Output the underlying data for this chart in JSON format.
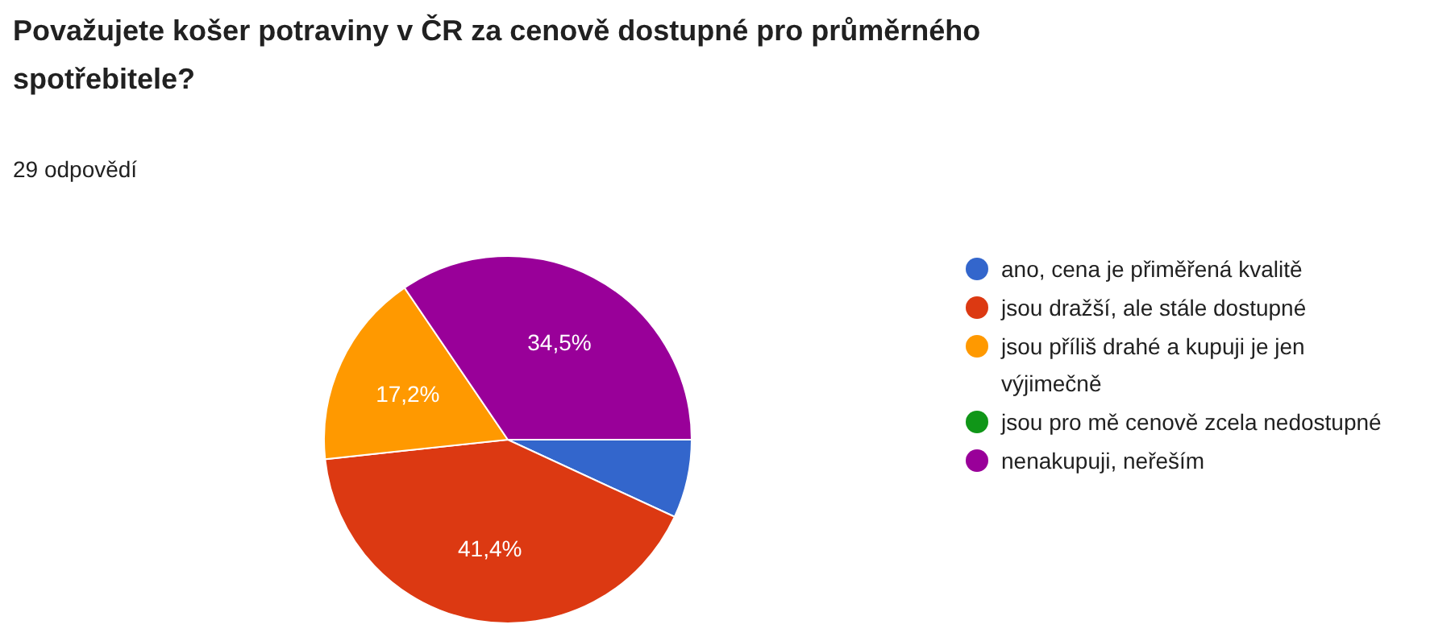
{
  "chart_data": {
    "type": "pie",
    "title": "Považujete košer potraviny v ČR za cenově dostupné pro průměrného spotřebitele?",
    "subtitle": "29 odpovědí",
    "categories": [
      "ano, cena je přiměřená kvalitě",
      "jsou dražší, ale stále dostupné",
      "jsou příliš drahé a kupuji je jen výjimečně",
      "jsou pro mě cenově zcela nedostupné",
      "nenakupuji, neřeším"
    ],
    "values": [
      6.9,
      41.4,
      17.2,
      0,
      34.5
    ],
    "colors": [
      "#3366cc",
      "#dc3912",
      "#ff9900",
      "#109618",
      "#990099"
    ],
    "value_labels": [
      null,
      "41,4%",
      "17,2%",
      null,
      "34,5%"
    ],
    "legend": "right"
  }
}
